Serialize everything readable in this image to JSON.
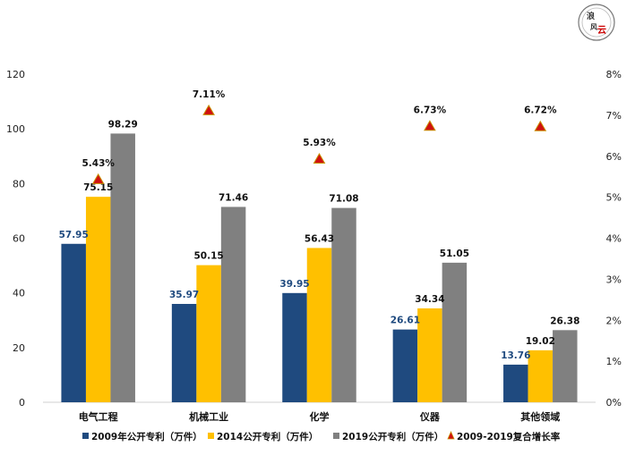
{
  "chart_data": {
    "type": "bar",
    "categories": [
      "电气工程",
      "机械工业",
      "化学",
      "仪器",
      "其他领域"
    ],
    "series": [
      {
        "name": "2009年公开专利（万件）",
        "values": [
          57.95,
          35.97,
          39.95,
          26.61,
          13.76
        ],
        "color": "#1f4a7f",
        "label_color": "#1f4a7f"
      },
      {
        "name": "2014公开专利（万件）",
        "values": [
          75.15,
          50.15,
          56.43,
          34.34,
          19.02
        ],
        "color": "#ffc000",
        "label_color": "#111111"
      },
      {
        "name": "2019公开专利（万件）",
        "values": [
          98.29,
          71.46,
          71.08,
          51.05,
          26.38
        ],
        "color": "#808080",
        "label_color": "#111111"
      }
    ],
    "secondary_series": {
      "name": "2009-2019复合增长率",
      "type": "scatter",
      "marker": "triangle",
      "values": [
        5.43,
        7.11,
        5.93,
        6.73,
        6.72
      ],
      "labels": [
        "5.43%",
        "7.11%",
        "5.93%",
        "6.73%",
        "6.72%"
      ],
      "color": "#d01010",
      "edge_color": "#c89000"
    },
    "y_left": {
      "min": 0,
      "max": 120,
      "ticks": [
        "0",
        "20",
        "40",
        "60",
        "80",
        "100",
        "120"
      ]
    },
    "y_right": {
      "min": 0,
      "max": 8,
      "ticks": [
        "0%",
        "1%",
        "2%",
        "3%",
        "4%",
        "5%",
        "6%",
        "7%",
        "8%"
      ]
    },
    "grid": false,
    "legend_position": "bottom"
  },
  "logo": {
    "text": "浪 风 云"
  }
}
